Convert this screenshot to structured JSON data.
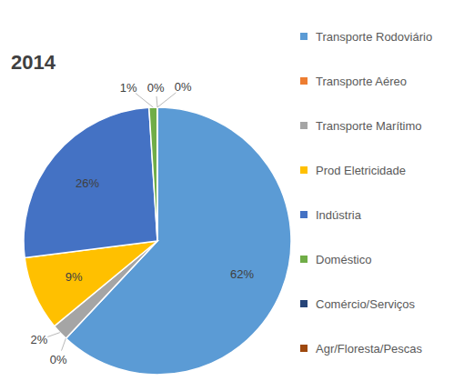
{
  "chart_data": {
    "type": "pie",
    "title": "2014",
    "categories": [
      "Transporte Rodoviário",
      "Transporte Aéreo",
      "Transporte Marítimo",
      "Prod Eletricidade",
      "Indústria",
      "Doméstico",
      "Comércio/Serviços",
      "Agr/Floresta/Pescas"
    ],
    "values": [
      62,
      0,
      2,
      9,
      26,
      1,
      0,
      0
    ],
    "value_labels": [
      "62%",
      "0%",
      "2%",
      "9%",
      "26%",
      "1%",
      "0%",
      "0%"
    ],
    "colors": [
      "#5b9bd5",
      "#ed7d31",
      "#a5a5a5",
      "#ffc000",
      "#4472c4",
      "#70ad47",
      "#264478",
      "#9e480e"
    ],
    "data_labels": true,
    "legend": "right"
  }
}
